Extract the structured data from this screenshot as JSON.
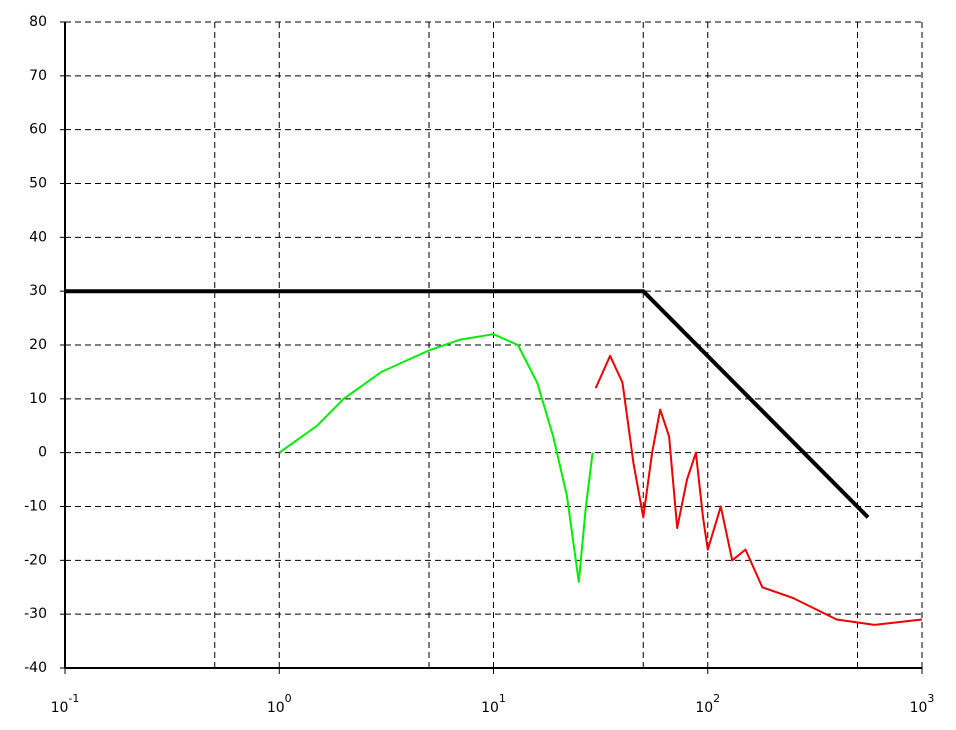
{
  "chart_data": {
    "type": "line",
    "xscale": "log",
    "xlim": [
      0.1,
      1000
    ],
    "ylim": [
      -40,
      80
    ],
    "xticks": [
      {
        "value": 0.1,
        "label": "10",
        "exponent": "-1"
      },
      {
        "value": 1,
        "label": "10",
        "exponent": "0"
      },
      {
        "value": 10,
        "label": "10",
        "exponent": "1"
      },
      {
        "value": 100,
        "label": "10",
        "exponent": "2"
      },
      {
        "value": 1000,
        "label": "10",
        "exponent": "3"
      }
    ],
    "xminor": [
      0.5,
      5,
      50,
      500
    ],
    "yticks": [
      -40,
      -30,
      -20,
      -10,
      0,
      10,
      20,
      30,
      40,
      50,
      60,
      70,
      80
    ],
    "grid": true,
    "series": [
      {
        "color": "#000000",
        "width": 4,
        "x": [
          0.1,
          50,
          560
        ],
        "values": [
          30,
          30,
          -12
        ]
      },
      {
        "color": "#00ee00",
        "width": 2,
        "x": [
          1,
          1.5,
          2,
          3,
          5,
          7,
          10,
          13,
          16,
          19,
          22,
          25,
          27,
          29
        ],
        "values": [
          0,
          5,
          10,
          15,
          19,
          21,
          22,
          20,
          13,
          3,
          -8,
          -24,
          -10,
          0
        ]
      },
      {
        "color": "#ee0000",
        "width": 2,
        "x": [
          30,
          35,
          40,
          45,
          50,
          55,
          60,
          66,
          72,
          80,
          88,
          95,
          100,
          115,
          130,
          150,
          180,
          250,
          400,
          600,
          1000
        ],
        "values": [
          12,
          18,
          13,
          -2,
          -12,
          0,
          8,
          3,
          -14,
          -5,
          0,
          -12,
          -18,
          -10,
          -20,
          -18,
          -25,
          -27,
          -31,
          -32,
          -31
        ]
      }
    ]
  }
}
